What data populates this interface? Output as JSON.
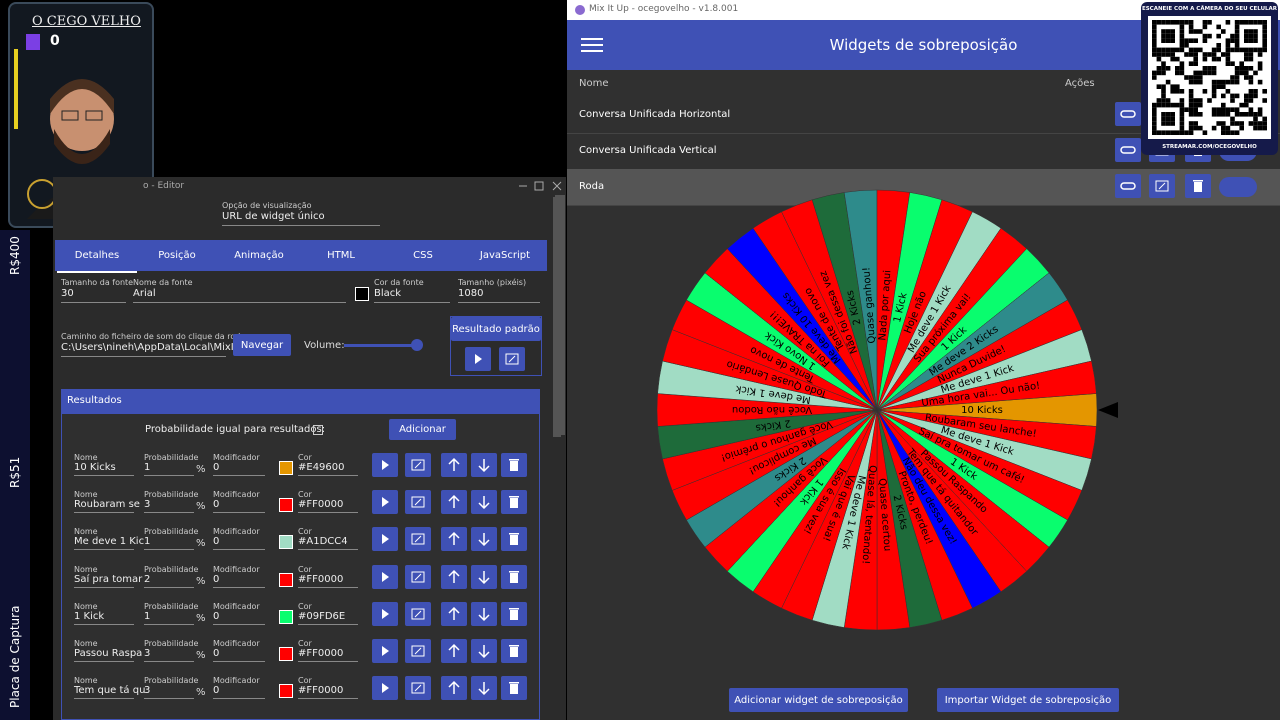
{
  "overlay": {
    "name": "O CEGO VELHO",
    "count": 0
  },
  "side_labels": [
    "R$400",
    "R$51",
    "Placa de Captura"
  ],
  "editor": {
    "title": "o - Editor",
    "view_option_label": "Opção de visualização",
    "view_option_value": "URL de widget único",
    "tabs": [
      "Detalhes",
      "Posição",
      "Animação",
      "HTML",
      "CSS",
      "JavaScript"
    ],
    "font_size_label": "Tamanho da fonte",
    "font_size": 30,
    "font_name_label": "Nome da fonte",
    "font_name": "Arial",
    "font_color_label": "Cor da fonte",
    "font_color": "Black",
    "size_label": "Tamanho (pixéis)",
    "size": 1080,
    "sound_label": "Caminho do ficheiro de som do clique da roda",
    "sound_path": "C:\\Users\\nineh\\AppData\\Local\\MixItU",
    "browse": "Navegar",
    "volume": "Volume:",
    "default_result": "Resultado padrão",
    "results": "Resultados",
    "equal_prob": "Probabilidade igual para resultados:",
    "add": "Adicionar",
    "columns": {
      "name": "Nome",
      "probability": "Probabilidade",
      "modifier": "Modificador",
      "color": "Cor"
    },
    "percent": "%",
    "rows": [
      [
        "10 Kicks",
        1,
        0,
        "#E49600"
      ],
      [
        "Roubaram se",
        3,
        0,
        "#FF0000"
      ],
      [
        "Me deve 1 Kic",
        1,
        0,
        "#A1DCC4"
      ],
      [
        "Saí pra tomar",
        2,
        0,
        "#FF0000"
      ],
      [
        "1 Kick",
        1,
        0,
        "#09FD6E"
      ],
      [
        "Passou Raspa",
        3,
        0,
        "#FF0000"
      ],
      [
        "Tem que tá qu",
        3,
        0,
        "#FF0000"
      ]
    ]
  },
  "mixitup": {
    "window_title": "Mix It Up - ocegovelho - v1.8.001",
    "header": "Widgets de sobreposição",
    "col_name": "Nome",
    "col_actions": "Ações",
    "widgets": [
      "Conversa Unificada Horizontal",
      "Conversa Unificada Vertical",
      "Roda"
    ],
    "add_button": "Adicionar widget de sobreposição",
    "import_button": "Importar Widget de sobreposição"
  },
  "qr": {
    "top": "ESCANEIE COM A CÂMERA DO SEU CELULAR",
    "bottom": "STREAMAR.COM/OCEGOVELHO"
  },
  "wheel": {
    "segments": [
      [
        "10 Kicks",
        "#E49600"
      ],
      [
        "Roubaram seu lanche!",
        "#FF0000"
      ],
      [
        "Me deve 1 Kick",
        "#A1DCC4"
      ],
      [
        "Saí pra tomar um café!",
        "#FF0000"
      ],
      [
        "1 Kick",
        "#09FD6E"
      ],
      [
        "Passou Raspando",
        "#FF0000"
      ],
      [
        "Tem que tá quitandor",
        "#FF0000"
      ],
      [
        "Não deu dessa vez!",
        "#0000FF"
      ],
      [
        "Pronto, perdeu!",
        "#FF0000"
      ],
      [
        "2 Kicks",
        "#1E6B3A"
      ],
      [
        "Quase acertou",
        "#FF0000"
      ],
      [
        "Quase lá, tentando!",
        "#FF0000"
      ],
      [
        "Me deve 1 Kick",
        "#A1DCC4"
      ],
      [
        "Vai que é sua!",
        "#FF0000"
      ],
      [
        "Isso é sua vez!",
        "#FF0000"
      ],
      [
        "1 Kick",
        "#09FD6E"
      ],
      [
        "Você ganhou!",
        "#FF0000"
      ],
      [
        "2 Kicks",
        "#2E8B8B"
      ],
      [
        "Me complicou!",
        "#FF0000"
      ],
      [
        "Você ganhou o prêmio!",
        "#FF0000"
      ],
      [
        "2 Kicks",
        "#1E6B3A"
      ],
      [
        "Você não Rodou",
        "#FF0000"
      ],
      [
        "Me deve 1 Kick",
        "#A1DCC4"
      ],
      [
        "Todo Quase Lendário",
        "#FF0000"
      ],
      [
        "Tente de novo",
        "#FF0000"
      ],
      [
        "1 Novo Kick",
        "#09FD6E"
      ],
      [
        "Foi na TRAVE!!!",
        "#FF0000"
      ],
      [
        "Me deve 10 Kicks",
        "#0000FF"
      ],
      [
        "Tente de novo",
        "#FF0000"
      ],
      [
        "Não foi dessa vez",
        "#FF0000"
      ],
      [
        "2 Kicks",
        "#1E6B3A"
      ],
      [
        "Quase ganhou!",
        "#2E8B8B"
      ],
      [
        "Nada por aqui",
        "#FF0000"
      ],
      [
        "1 Kick",
        "#09FD6E"
      ],
      [
        "Hoje não",
        "#FF0000"
      ],
      [
        "Me deve 1 Kick",
        "#A1DCC4"
      ],
      [
        "Sua próxima vai!",
        "#FF0000"
      ],
      [
        "1 Kick",
        "#09FD6E"
      ],
      [
        "Me deve 2 Kicks",
        "#2E8B8B"
      ],
      [
        "Nunca Duvide!",
        "#FF0000"
      ],
      [
        "Me deve 1 Kick",
        "#A1DCC4"
      ],
      [
        "Uma hora vai... Ou não!",
        "#FF0000"
      ]
    ]
  }
}
